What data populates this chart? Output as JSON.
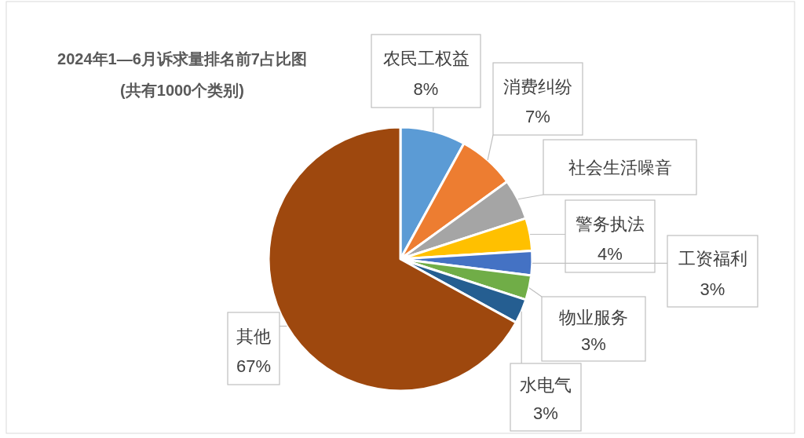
{
  "chart_data": {
    "type": "pie",
    "title": "2024年1—6月诉求量排名前7占比图",
    "subtitle": "(共有1000个类别)",
    "categories": [
      "农民工权益",
      "消费纠纷",
      "社会生活噪音",
      "警务执法",
      "工资福利",
      "物业服务",
      "水电气",
      "其他"
    ],
    "values": [
      8,
      7,
      5,
      4,
      3,
      3,
      3,
      67
    ],
    "value_labels": [
      "8%",
      "7%",
      null,
      "4%",
      "3%",
      "3%",
      "3%",
      "67%"
    ],
    "colors": [
      "#5b9bd5",
      "#ed7d31",
      "#a5a5a5",
      "#ffc000",
      "#4472c4",
      "#70ad47",
      "#255e91",
      "#9e480e"
    ],
    "legend": false
  }
}
